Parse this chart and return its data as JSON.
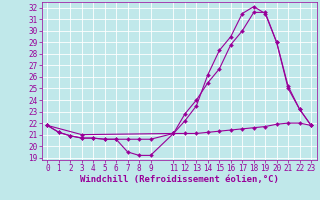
{
  "xlabel": "Windchill (Refroidissement éolien,°C)",
  "bg_color": "#c0e8ea",
  "line_color": "#990099",
  "grid_color": "#a0d0d4",
  "xlim": [
    -0.5,
    23.5
  ],
  "ylim": [
    18.8,
    32.5
  ],
  "yticks": [
    19,
    20,
    21,
    22,
    23,
    24,
    25,
    26,
    27,
    28,
    29,
    30,
    31,
    32
  ],
  "xticks": [
    0,
    1,
    2,
    3,
    4,
    5,
    6,
    7,
    8,
    9,
    11,
    12,
    13,
    14,
    15,
    16,
    17,
    18,
    19,
    20,
    21,
    22,
    23
  ],
  "line1_x": [
    0,
    1,
    2,
    3,
    4,
    5,
    6,
    7,
    8,
    9,
    11,
    12,
    13,
    14,
    15,
    16,
    17,
    18,
    19,
    20,
    21,
    22,
    23
  ],
  "line1_y": [
    21.8,
    21.2,
    20.9,
    20.7,
    20.7,
    20.6,
    20.6,
    19.5,
    19.2,
    19.2,
    21.1,
    21.1,
    21.1,
    21.2,
    21.3,
    21.4,
    21.5,
    21.6,
    21.7,
    21.9,
    22.0,
    22.0,
    21.8
  ],
  "line2_x": [
    0,
    1,
    2,
    3,
    4,
    5,
    6,
    7,
    8,
    9,
    11,
    12,
    13,
    14,
    15,
    16,
    17,
    18,
    19,
    20,
    21,
    22,
    23
  ],
  "line2_y": [
    21.8,
    21.2,
    20.9,
    20.7,
    20.7,
    20.6,
    20.6,
    20.6,
    20.6,
    20.6,
    21.1,
    22.2,
    23.5,
    26.2,
    28.3,
    29.5,
    31.5,
    32.1,
    31.5,
    29.0,
    25.2,
    23.2,
    21.8
  ],
  "line3_x": [
    0,
    3,
    11,
    12,
    13,
    14,
    15,
    16,
    17,
    18,
    19,
    20,
    21,
    22,
    23
  ],
  "line3_y": [
    21.8,
    21.0,
    21.1,
    22.8,
    24.0,
    25.5,
    26.7,
    28.8,
    30.0,
    31.6,
    31.6,
    29.0,
    25.0,
    23.2,
    21.8
  ],
  "marker": "D",
  "markersize": 2.0,
  "linewidth": 0.8,
  "tick_fontsize": 5.5,
  "label_fontsize": 6.5
}
